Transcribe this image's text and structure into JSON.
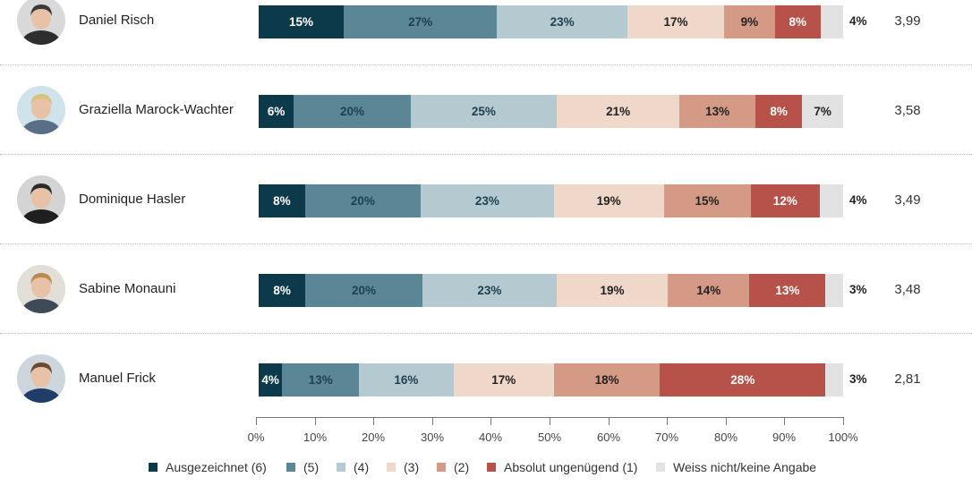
{
  "chart_data": {
    "type": "bar",
    "orientation": "horizontal",
    "stacked": true,
    "xlim": [
      0,
      100
    ],
    "x_ticks": [
      "0%",
      "10%",
      "20%",
      "30%",
      "40%",
      "50%",
      "60%",
      "70%",
      "80%",
      "90%",
      "100%"
    ],
    "categories": [
      "(6)",
      "(5)",
      "(4)",
      "(3)",
      "(2)",
      "(1)",
      "Weiss nicht/keine Angabe"
    ],
    "colors": [
      "#0d3a4b",
      "#5b8696",
      "#b4c9d0",
      "#efd7c9",
      "#d59a86",
      "#b65249",
      "#e2e2e2"
    ],
    "label_colors": [
      "#ffffff",
      "#1d3f4e",
      "#1d3f4e",
      "#222222",
      "#222222",
      "#ffffff",
      "#222222"
    ],
    "legend": {
      "placement": "bottom",
      "entries": [
        "Ausgezeichnet (6)",
        "(5)",
        "(4)",
        "(3)",
        "(2)",
        "Absolut ungenügend (1)",
        "Weiss nicht/keine Angabe"
      ]
    },
    "rows": [
      {
        "name": "Daniel Risch",
        "values": [
          15,
          27,
          23,
          17,
          9,
          8,
          4
        ],
        "labels": [
          "15%",
          "27%",
          "23%",
          "17%",
          "9%",
          "8%",
          "4%"
        ],
        "last_label_outside": true,
        "score": "3,99"
      },
      {
        "name": "Graziella Marock-Wachter",
        "values": [
          6,
          20,
          25,
          21,
          13,
          8,
          7
        ],
        "labels": [
          "6%",
          "20%",
          "25%",
          "21%",
          "13%",
          "8%",
          "7%"
        ],
        "last_label_outside": false,
        "score": "3,58"
      },
      {
        "name": "Dominique Hasler",
        "values": [
          8,
          20,
          23,
          19,
          15,
          12,
          4
        ],
        "labels": [
          "8%",
          "20%",
          "23%",
          "19%",
          "15%",
          "12%",
          "4%"
        ],
        "last_label_outside": true,
        "score": "3,49"
      },
      {
        "name": "Sabine Monauni",
        "values": [
          8,
          20,
          23,
          19,
          14,
          13,
          3
        ],
        "labels": [
          "8%",
          "20%",
          "23%",
          "19%",
          "14%",
          "13%",
          "3%"
        ],
        "last_label_outside": true,
        "score": "3,48"
      },
      {
        "name": "Manuel Frick",
        "values": [
          4,
          13,
          16,
          17,
          18,
          28,
          3
        ],
        "labels": [
          "4%",
          "13%",
          "16%",
          "17%",
          "18%",
          "28%",
          "3%"
        ],
        "last_label_outside": true,
        "score": "2,81"
      }
    ]
  }
}
